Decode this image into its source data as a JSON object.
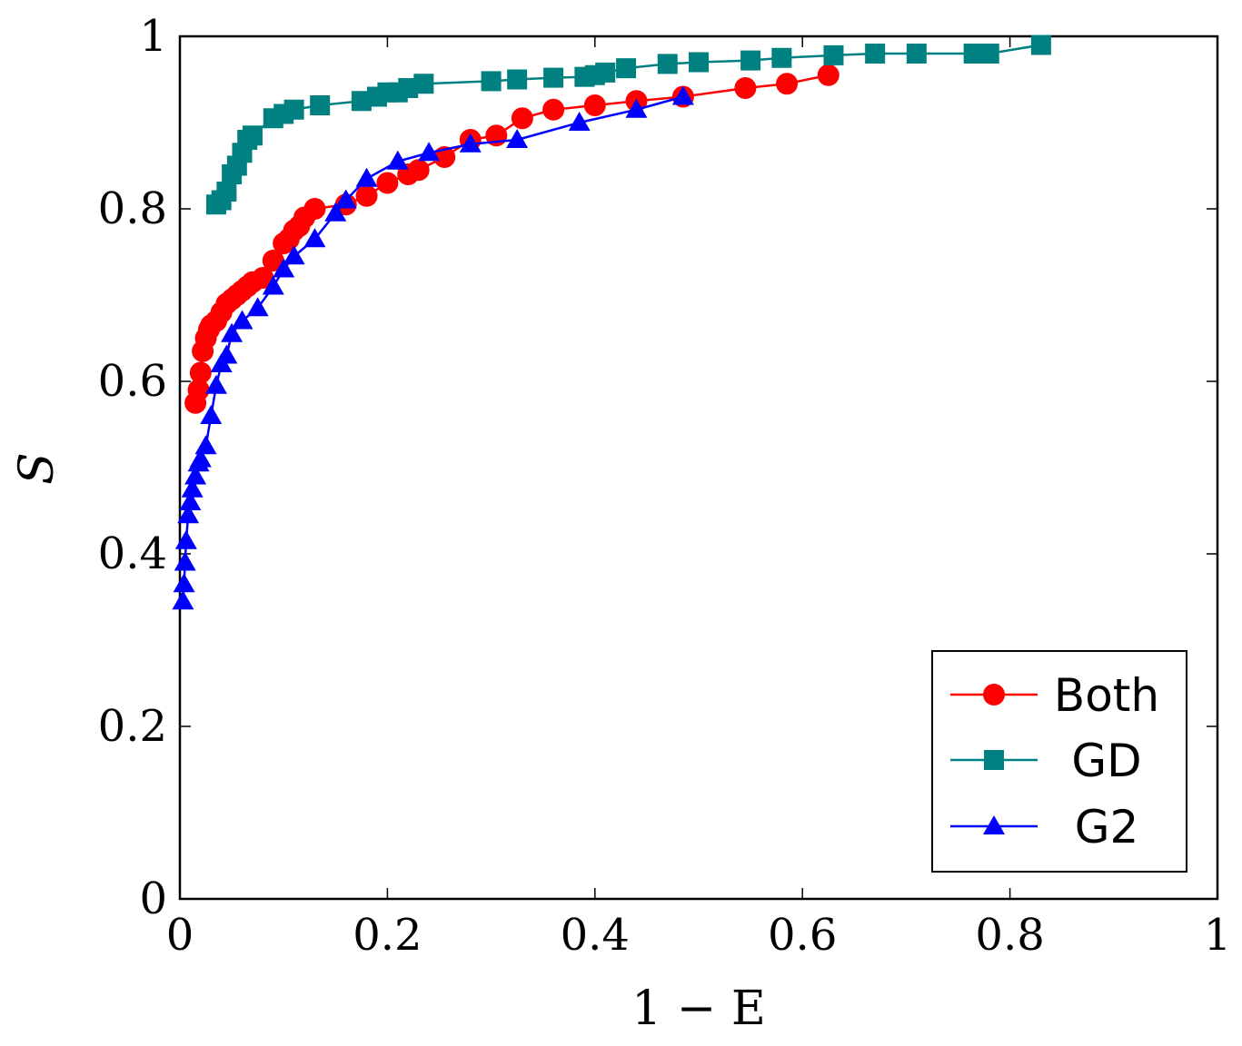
{
  "chart_data": {
    "type": "line",
    "title": "",
    "xlabel": "1 − E",
    "ylabel": "S",
    "xlim": [
      0,
      1
    ],
    "ylim": [
      0,
      1
    ],
    "xticks": [
      "0",
      "0.2",
      "0.4",
      "0.6",
      "0.8",
      "1"
    ],
    "yticks": [
      "0",
      "0.2",
      "0.4",
      "0.6",
      "0.8",
      "1"
    ],
    "grid": false,
    "legend_position": "bottom-right",
    "series": [
      {
        "name": "Both",
        "color": "#ff0000",
        "marker": "circle",
        "x": [
          0.015,
          0.018,
          0.02,
          0.022,
          0.025,
          0.028,
          0.03,
          0.035,
          0.04,
          0.045,
          0.05,
          0.055,
          0.06,
          0.065,
          0.07,
          0.08,
          0.09,
          0.1,
          0.105,
          0.11,
          0.115,
          0.12,
          0.13,
          0.16,
          0.18,
          0.2,
          0.22,
          0.23,
          0.255,
          0.28,
          0.305,
          0.33,
          0.36,
          0.4,
          0.44,
          0.485,
          0.545,
          0.585,
          0.625
        ],
        "values": [
          0.575,
          0.59,
          0.61,
          0.635,
          0.65,
          0.66,
          0.665,
          0.67,
          0.68,
          0.69,
          0.695,
          0.7,
          0.705,
          0.71,
          0.715,
          0.72,
          0.74,
          0.76,
          0.765,
          0.775,
          0.78,
          0.79,
          0.8,
          0.805,
          0.815,
          0.83,
          0.84,
          0.845,
          0.86,
          0.88,
          0.885,
          0.905,
          0.915,
          0.92,
          0.925,
          0.93,
          0.94,
          0.945,
          0.955
        ]
      },
      {
        "name": "GD",
        "color": "#008080",
        "marker": "square",
        "x": [
          0.035,
          0.04,
          0.045,
          0.05,
          0.055,
          0.06,
          0.065,
          0.07,
          0.09,
          0.1,
          0.11,
          0.135,
          0.175,
          0.19,
          0.2,
          0.21,
          0.22,
          0.235,
          0.3,
          0.325,
          0.36,
          0.39,
          0.4,
          0.41,
          0.43,
          0.47,
          0.5,
          0.55,
          0.58,
          0.63,
          0.67,
          0.71,
          0.765,
          0.78,
          0.83
        ],
        "values": [
          0.805,
          0.81,
          0.82,
          0.84,
          0.85,
          0.865,
          0.88,
          0.885,
          0.905,
          0.91,
          0.915,
          0.92,
          0.925,
          0.93,
          0.935,
          0.935,
          0.94,
          0.945,
          0.948,
          0.95,
          0.952,
          0.953,
          0.955,
          0.958,
          0.963,
          0.968,
          0.97,
          0.972,
          0.975,
          0.978,
          0.98,
          0.98,
          0.98,
          0.98,
          0.99
        ]
      },
      {
        "name": "G2",
        "color": "#0000ff",
        "marker": "triangle",
        "x": [
          0.003,
          0.004,
          0.005,
          0.006,
          0.008,
          0.01,
          0.012,
          0.015,
          0.018,
          0.02,
          0.025,
          0.03,
          0.035,
          0.04,
          0.045,
          0.05,
          0.06,
          0.075,
          0.09,
          0.1,
          0.11,
          0.13,
          0.15,
          0.16,
          0.18,
          0.21,
          0.24,
          0.28,
          0.325,
          0.385,
          0.44,
          0.485
        ],
        "values": [
          0.345,
          0.365,
          0.39,
          0.415,
          0.445,
          0.46,
          0.475,
          0.49,
          0.505,
          0.51,
          0.525,
          0.56,
          0.595,
          0.62,
          0.63,
          0.655,
          0.67,
          0.685,
          0.71,
          0.73,
          0.745,
          0.765,
          0.795,
          0.81,
          0.835,
          0.855,
          0.865,
          0.875,
          0.88,
          0.9,
          0.915,
          0.93
        ]
      }
    ]
  }
}
